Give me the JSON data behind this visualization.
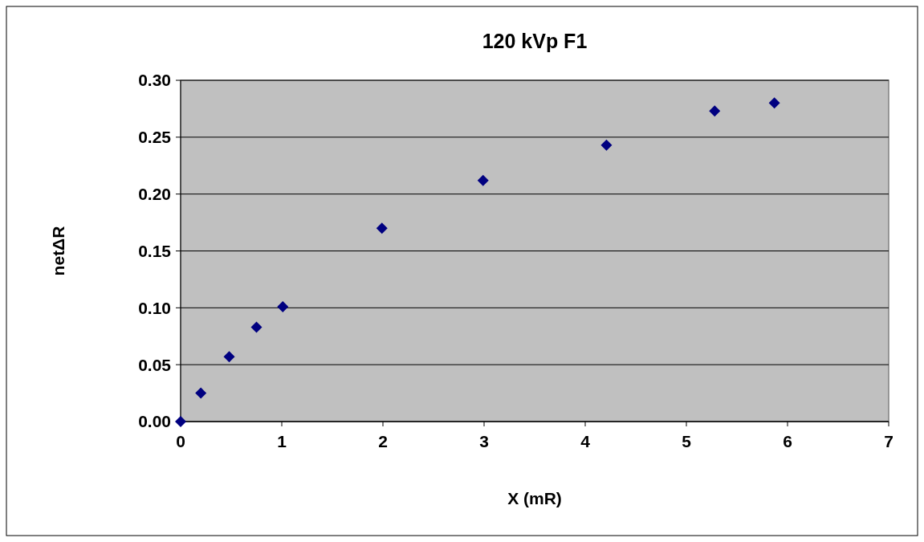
{
  "chart_data": {
    "type": "scatter",
    "title": "120 kVp F1",
    "xlabel": "X (mR)",
    "ylabel": "netΔR",
    "x": [
      0,
      0.2,
      0.48,
      0.75,
      1.01,
      1.99,
      2.99,
      4.21,
      5.28,
      5.87
    ],
    "series": [
      {
        "color": "#000080",
        "values": [
          0,
          0.025,
          0.057,
          0.083,
          0.101,
          0.17,
          0.212,
          0.243,
          0.273,
          0.28
        ]
      }
    ],
    "xlim": [
      0,
      7
    ],
    "xticks": [
      0,
      1,
      2,
      3,
      4,
      5,
      6,
      7
    ],
    "ylim": [
      0,
      0.3
    ],
    "yticks": [
      {
        "value": 0,
        "label": "0.00"
      },
      {
        "value": 0.05,
        "label": "0.05"
      },
      {
        "value": 0.1,
        "label": "0.10"
      },
      {
        "value": 0.15,
        "label": "0.15"
      },
      {
        "value": 0.2,
        "label": "0.20"
      },
      {
        "value": 0.25,
        "label": "0.25"
      },
      {
        "value": 0.3,
        "label": "0.30"
      }
    ],
    "grid": "y",
    "marker": "diamond"
  }
}
